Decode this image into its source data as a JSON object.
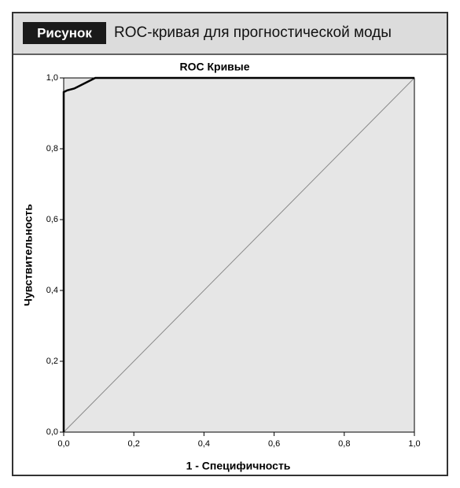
{
  "figure": {
    "label": "Рисунок",
    "caption": "ROC-кривая для прогностической моды"
  },
  "chart_data": {
    "type": "line",
    "title": "ROC Кривые",
    "x_label": "1 - Специфичность",
    "y_label": "Чувствительность",
    "series": [
      {
        "color": "#000000",
        "width": 2.5,
        "x": [
          0,
          0,
          0.01,
          0.03,
          0.04,
          0.05,
          0.07,
          0.08,
          0.09,
          1
        ],
        "values": [
          0,
          0.96,
          0.965,
          0.97,
          0.975,
          0.98,
          0.99,
          0.995,
          1,
          1
        ]
      },
      {
        "color": "#888888",
        "width": 1,
        "x": [
          0,
          1
        ],
        "values": [
          0,
          1
        ]
      }
    ],
    "xlim": [
      0,
      1
    ],
    "ylim": [
      0,
      1
    ],
    "xticks": [
      {
        "value": 0,
        "label": "0,0"
      },
      {
        "value": 0.2,
        "label": "0,2"
      },
      {
        "value": 0.4,
        "label": "0,4"
      },
      {
        "value": 0.6,
        "label": "0,6"
      },
      {
        "value": 0.8,
        "label": "0,8"
      },
      {
        "value": 1,
        "label": "1,0"
      }
    ],
    "yticks": [
      {
        "value": 0,
        "label": "0,0"
      },
      {
        "value": 0.2,
        "label": "0,2"
      },
      {
        "value": 0.4,
        "label": "0,4"
      },
      {
        "value": 0.6,
        "label": "0,6"
      },
      {
        "value": 0.8,
        "label": "0,8"
      },
      {
        "value": 1,
        "label": "1,0"
      }
    ],
    "plot_background": "#e6e6e6"
  }
}
